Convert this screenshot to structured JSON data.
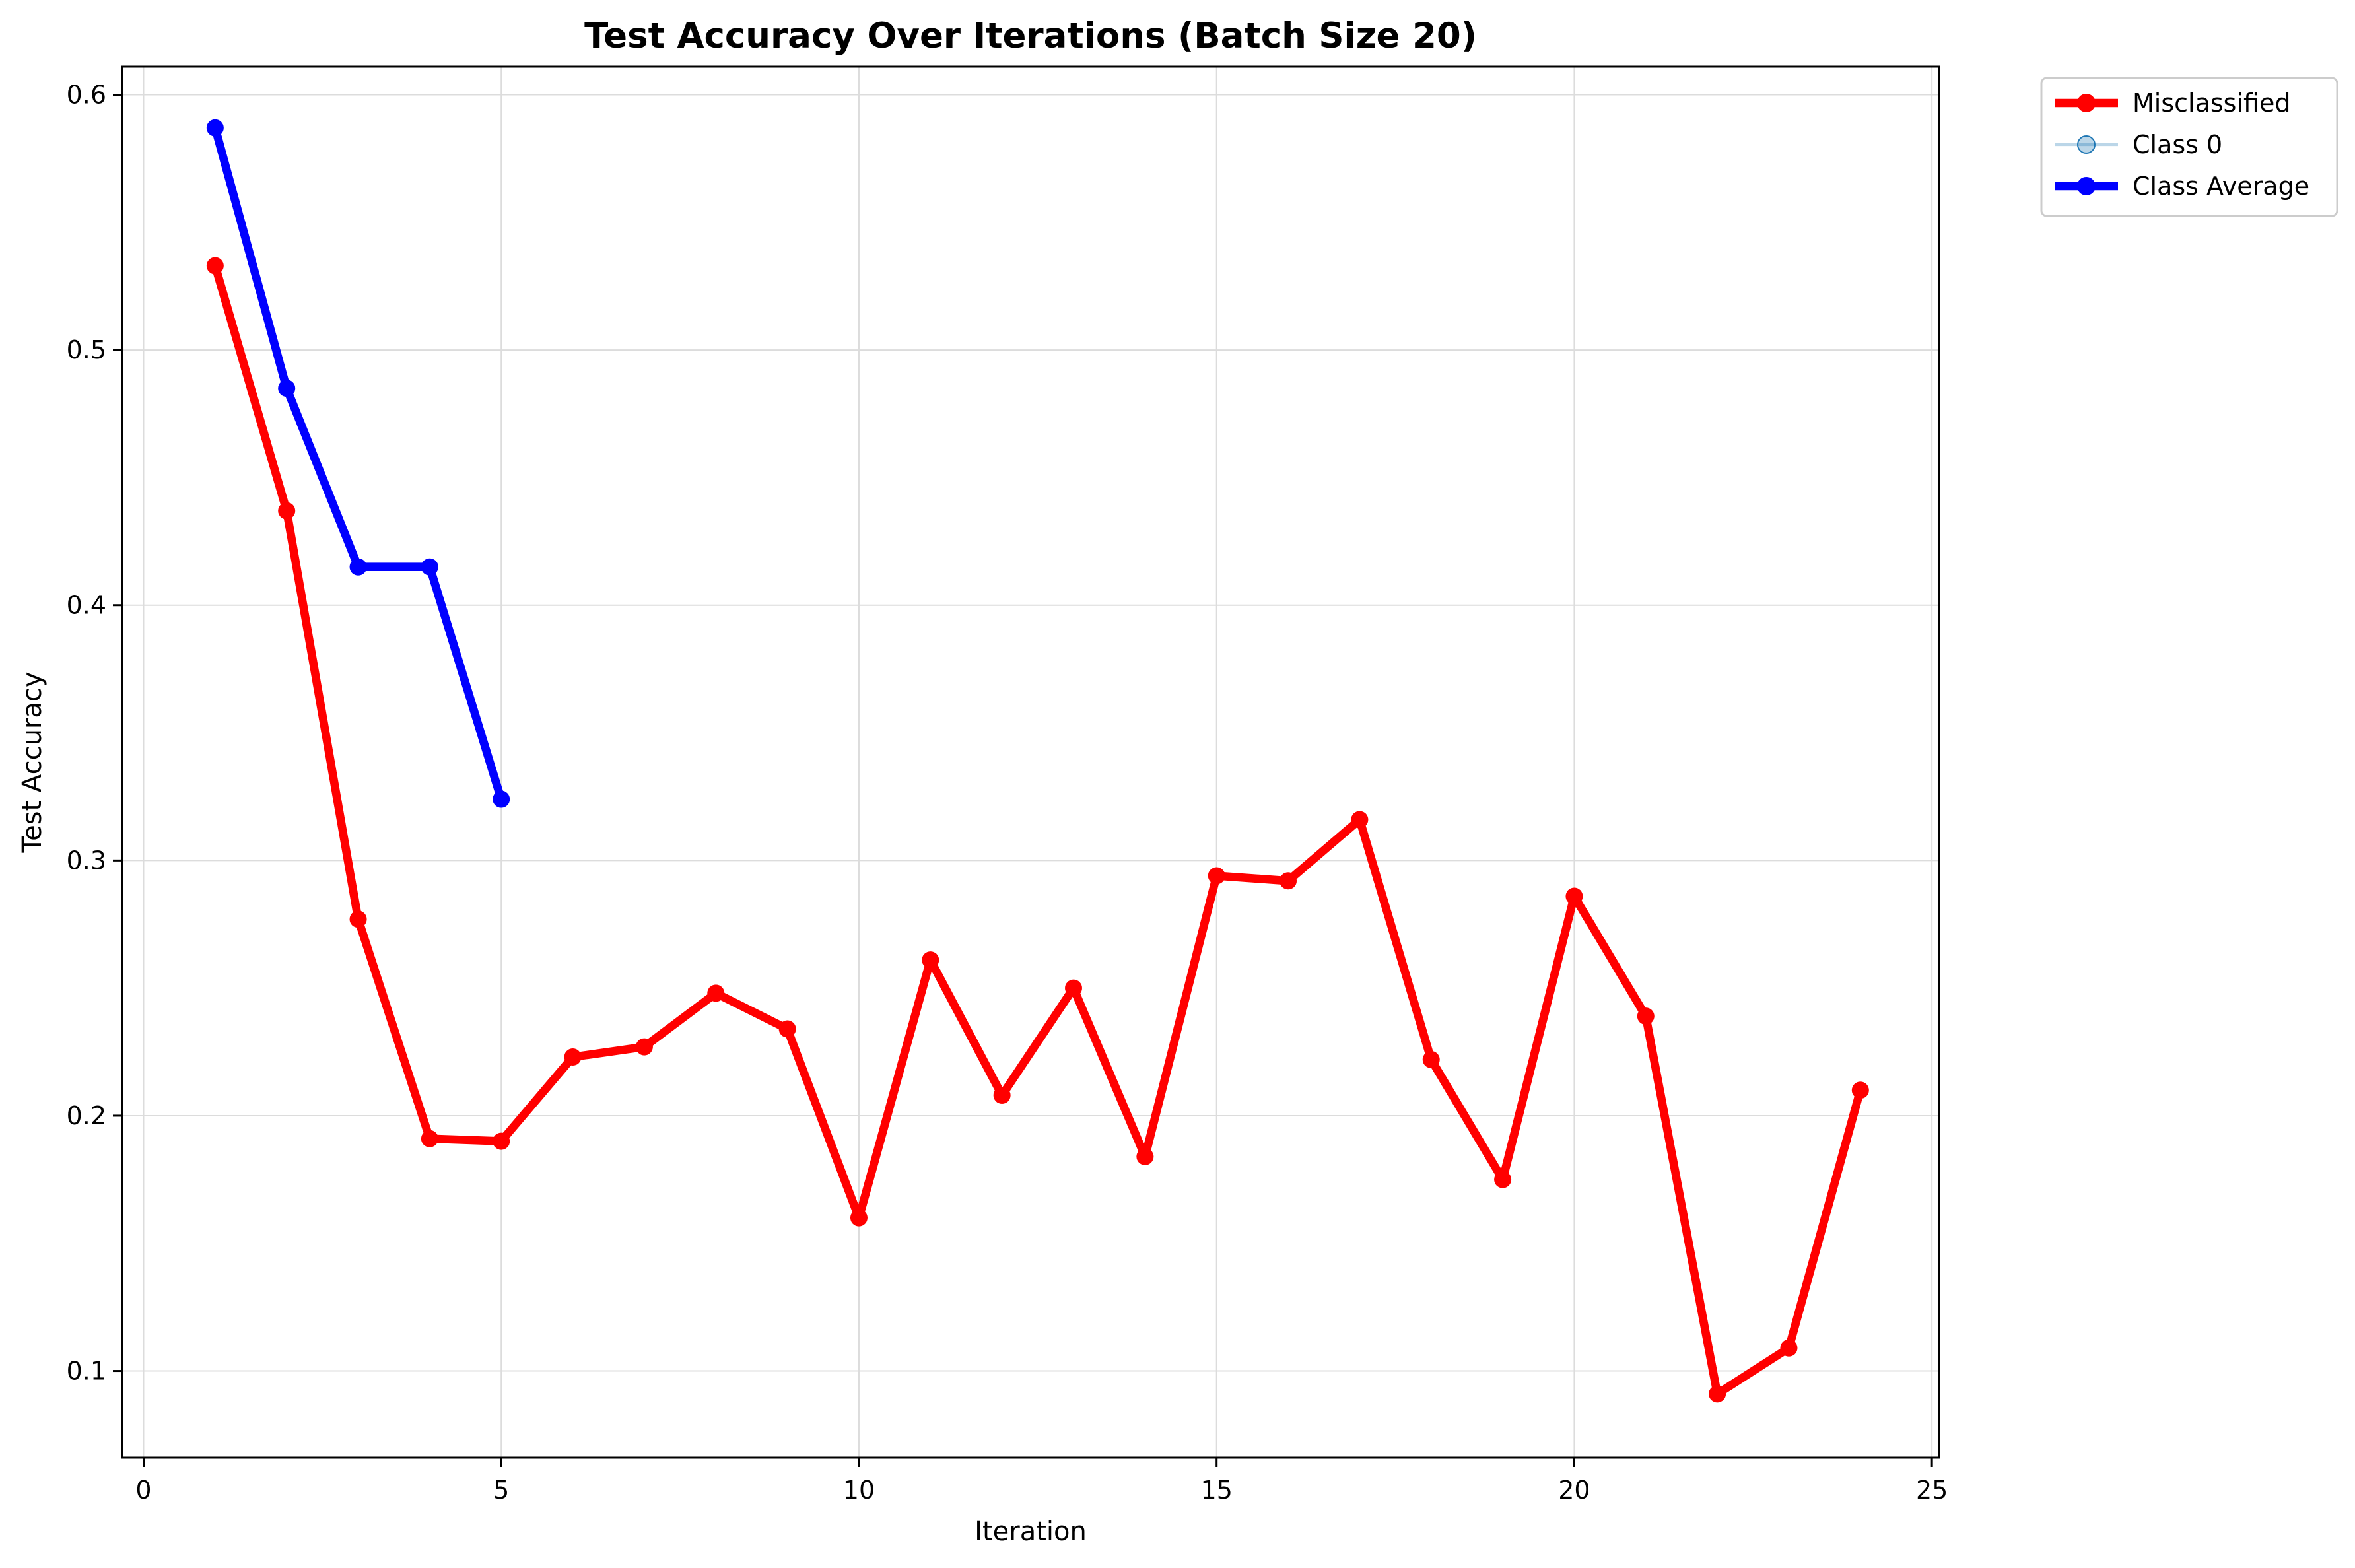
{
  "chart_data": {
    "type": "line",
    "title": "Test Accuracy Over Iterations (Batch Size 20)",
    "xlabel": "Iteration",
    "ylabel": "Test Accuracy",
    "xlim": [
      -0.3,
      25.1
    ],
    "ylim": [
      0.066,
      0.611
    ],
    "xticks": [
      0,
      5,
      10,
      15,
      20,
      25
    ],
    "yticks": [
      0.1,
      0.2,
      0.3,
      0.4,
      0.5,
      0.6
    ],
    "grid": true,
    "legend_position": "outside-top-right",
    "series": [
      {
        "name": "Misclassified",
        "color": "#ff0000",
        "alpha": 1.0,
        "linewidth": 3,
        "x": [
          1,
          2,
          3,
          4,
          5,
          6,
          7,
          8,
          9,
          10,
          11,
          12,
          13,
          14,
          15,
          16,
          17,
          18,
          19,
          20,
          21,
          22,
          23,
          24
        ],
        "y": [
          0.533,
          0.437,
          0.277,
          0.191,
          0.19,
          0.223,
          0.227,
          0.248,
          0.234,
          0.16,
          0.261,
          0.208,
          0.25,
          0.184,
          0.294,
          0.292,
          0.316,
          0.222,
          0.175,
          0.286,
          0.239,
          0.091,
          0.109,
          0.21
        ]
      },
      {
        "name": "Class 0",
        "color": "#1f77b4",
        "alpha": 0.3,
        "linewidth": 1,
        "x": [],
        "y": []
      },
      {
        "name": "Class Average",
        "color": "#0000ff",
        "alpha": 1.0,
        "linewidth": 3,
        "x": [
          1,
          2,
          3,
          4,
          5
        ],
        "y": [
          0.587,
          0.485,
          0.415,
          0.415,
          0.324
        ]
      }
    ]
  }
}
